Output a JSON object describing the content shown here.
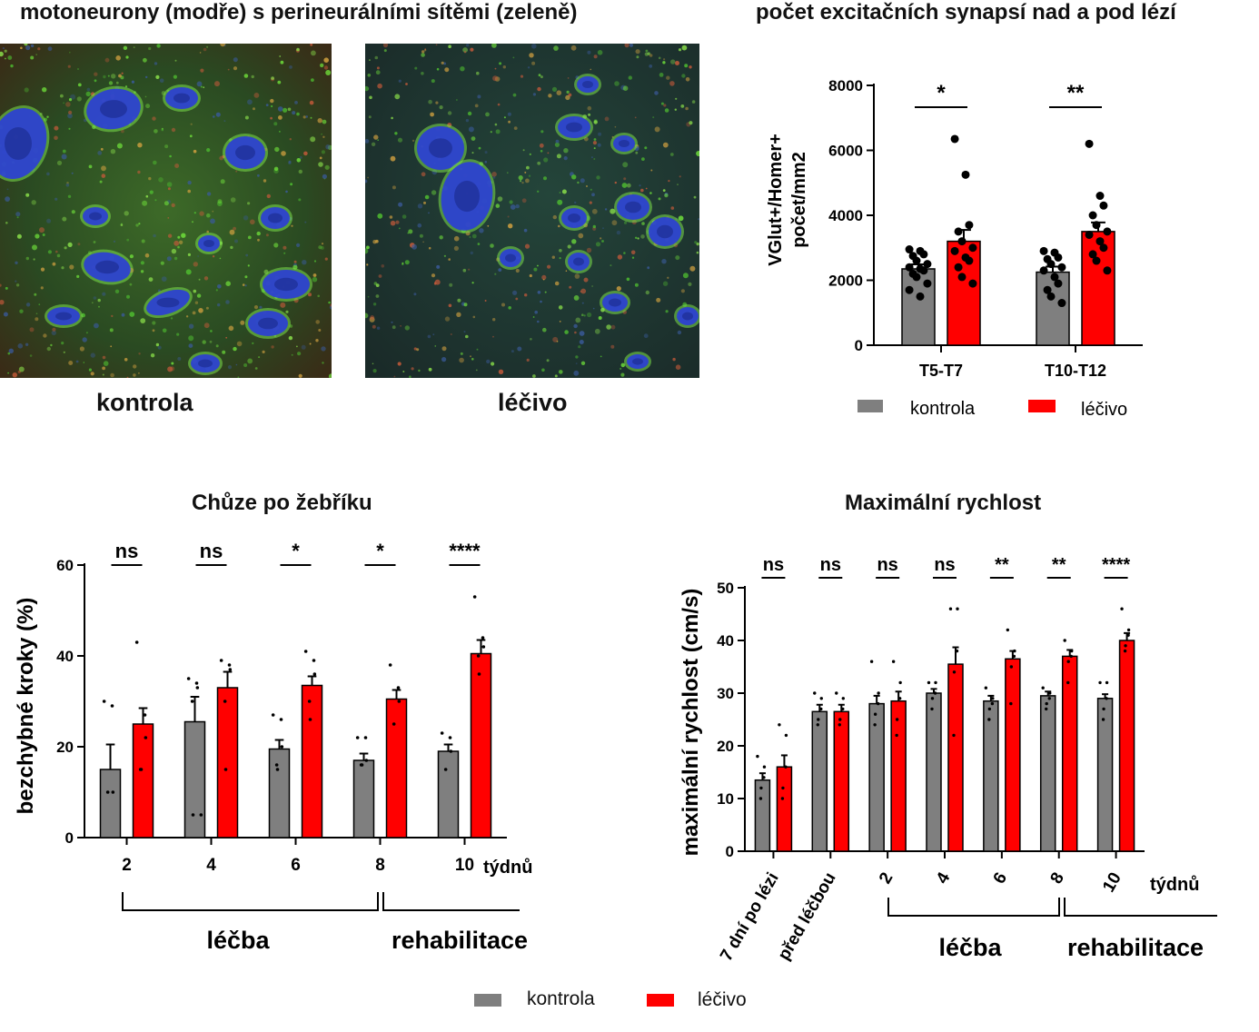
{
  "micrographs": {
    "title": "motoneurony (modře) s perineurálními sítěmi (zeleně)",
    "labels": [
      "kontrola",
      "léčivo"
    ]
  },
  "colors": {
    "kontrola": "#7f7f7f",
    "lecivo": "#ff0000",
    "neuron": "#2b3fd4",
    "net": "#5fd12a"
  },
  "chart_data": [
    {
      "type": "bar",
      "title": "počet excitačních synapsí nad a pod lézí",
      "ylabel": "VGlut+/Homer+ počet/mm2",
      "ylabel_lines": [
        "VGlut+/Homer+",
        "počet/mm2"
      ],
      "categories": [
        "T5-T7",
        "T10-T12"
      ],
      "ylim": [
        0,
        8000
      ],
      "yticks": [
        "0",
        "2000",
        "4000",
        "6000",
        "8000"
      ],
      "series": [
        {
          "name": "kontrola",
          "values": [
            2350,
            2250
          ],
          "sem": [
            140,
            170
          ],
          "points": [
            [
              2950,
              2900,
              2800,
              2750,
              2600,
              2500,
              2400,
              2350,
              2300,
              2200,
              2100,
              1900,
              1700,
              1500
            ],
            [
              2900,
              2850,
              2700,
              2650,
              2500,
              2400,
              2300,
              2100,
              1900,
              1700,
              1500,
              1300
            ]
          ]
        },
        {
          "name": "léčivo",
          "values": [
            3200,
            3500
          ],
          "sem": [
            350,
            280
          ],
          "points": [
            [
              6350,
              5250,
              3700,
              3500,
              3200,
              3000,
              2900,
              2700,
              2600,
              2400,
              2100,
              1900
            ],
            [
              6200,
              4600,
              4300,
              4000,
              3700,
              3500,
              3400,
              3200,
              3000,
              2800,
              2600,
              2300
            ]
          ]
        }
      ],
      "significance": [
        "*",
        "**"
      ],
      "legend": [
        "kontrola",
        "léčivo"
      ],
      "grid": false,
      "legend_position": "bottom"
    },
    {
      "type": "bar",
      "title": "Chůze po žebříku",
      "ylabel": "bezchybné kroky (%)",
      "categories": [
        "2",
        "4",
        "6",
        "8",
        "10"
      ],
      "x_unit": "týdnů",
      "ylim": [
        0,
        60
      ],
      "yticks": [
        "0",
        "20",
        "40",
        "60"
      ],
      "series": [
        {
          "name": "kontrola",
          "values": [
            15,
            25.5,
            19.5,
            17,
            19
          ],
          "sem": [
            5.5,
            5.5,
            2,
            1.5,
            1.5
          ],
          "points": [
            [
              30,
              29,
              10,
              10
            ],
            [
              35,
              34,
              33,
              30,
              5,
              5
            ],
            [
              27,
              26,
              20,
              16,
              15
            ],
            [
              22,
              22,
              17,
              16,
              16
            ],
            [
              23,
              22,
              19,
              15
            ]
          ]
        },
        {
          "name": "léčivo",
          "values": [
            25,
            33,
            33.5,
            30.5,
            40.5
          ],
          "sem": [
            3.5,
            3.5,
            2,
            2,
            3
          ],
          "points": [
            [
              43,
              27,
              22,
              15,
              15
            ],
            [
              39,
              38,
              37,
              30,
              15
            ],
            [
              41,
              39,
              36,
              30,
              26
            ],
            [
              38,
              33,
              30,
              25
            ],
            [
              53,
              44,
              42,
              40,
              36
            ]
          ]
        }
      ],
      "significance": [
        "ns",
        "ns",
        "*",
        "*",
        "****"
      ],
      "phases": [
        "léčba",
        "rehabilitace"
      ],
      "legend": [
        "kontrola",
        "léčivo"
      ],
      "grid": false,
      "legend_position": "bottom"
    },
    {
      "type": "bar",
      "title": "Maximální rychlost",
      "ylabel": "maximální rychlost (cm/s)",
      "categories": [
        "7 dní po lézi",
        "před léčbou",
        "2",
        "4",
        "6",
        "8",
        "10"
      ],
      "x_unit": "týdnů",
      "ylim": [
        0,
        50
      ],
      "yticks": [
        "0",
        "10",
        "20",
        "30",
        "40",
        "50"
      ],
      "series": [
        {
          "name": "kontrola",
          "values": [
            13.5,
            26.5,
            28,
            30,
            28.5,
            29.5,
            29
          ],
          "sem": [
            1.3,
            1.3,
            1.5,
            0.8,
            1,
            0.8,
            0.8
          ],
          "points": [
            [
              18,
              16,
              14,
              12,
              10
            ],
            [
              30,
              29,
              27,
              25,
              24
            ],
            [
              36,
              30,
              28,
              26,
              24
            ],
            [
              32,
              32,
              30,
              29,
              27
            ],
            [
              31,
              29,
              28,
              27,
              25
            ],
            [
              31,
              30,
              29,
              28,
              27
            ],
            [
              32,
              32,
              29,
              27,
              25
            ]
          ]
        },
        {
          "name": "léčivo",
          "values": [
            16,
            26.5,
            28.5,
            35.5,
            36.5,
            37,
            40
          ],
          "sem": [
            2.2,
            1.3,
            1.8,
            3.2,
            1.5,
            1.2,
            1.4
          ],
          "points": [
            [
              24,
              22,
              16,
              12,
              10
            ],
            [
              30,
              29,
              27,
              25,
              24
            ],
            [
              36,
              32,
              29,
              25,
              22
            ],
            [
              46,
              46,
              38,
              34,
              22
            ],
            [
              42,
              38,
              37,
              35,
              28
            ],
            [
              40,
              38,
              37,
              36,
              32
            ],
            [
              46,
              42,
              41,
              39,
              38
            ]
          ]
        }
      ],
      "significance": [
        "ns",
        "ns",
        "ns",
        "ns",
        "**",
        "**",
        "****"
      ],
      "phases": [
        "léčba",
        "rehabilitace"
      ],
      "legend": [
        "kontrola",
        "léčivo"
      ],
      "grid": false,
      "legend_position": "bottom"
    }
  ]
}
